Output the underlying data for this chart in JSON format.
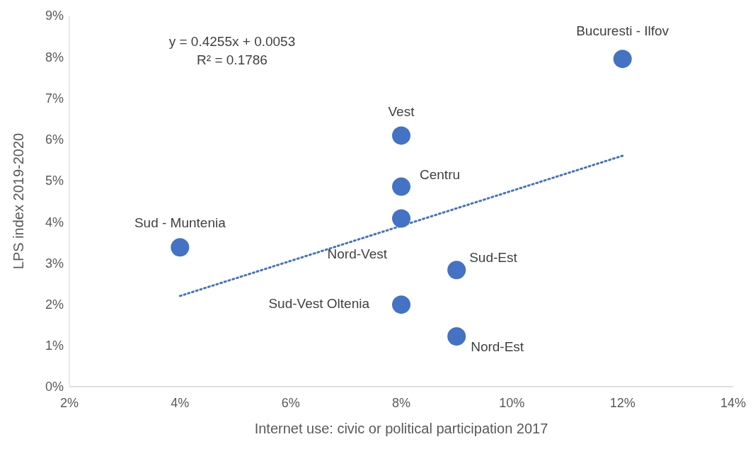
{
  "chart_data": {
    "type": "scatter",
    "xlabel": "Internet use: civic or political participation 2017",
    "ylabel": "LPS index 2019-2020",
    "xlim": [
      0.02,
      0.14
    ],
    "xticks": [
      {
        "value": 0.02,
        "label": "2%"
      },
      {
        "value": 0.04,
        "label": "4%"
      },
      {
        "value": 0.06,
        "label": "6%"
      },
      {
        "value": 0.08,
        "label": "8%"
      },
      {
        "value": 0.1,
        "label": "10%"
      },
      {
        "value": 0.12,
        "label": "12%"
      },
      {
        "value": 0.14,
        "label": "14%"
      }
    ],
    "ylim": [
      0,
      0.09
    ],
    "yticks": [
      {
        "value": 0,
        "label": "0%"
      },
      {
        "value": 0.01,
        "label": "1%"
      },
      {
        "value": 0.02,
        "label": "2%"
      },
      {
        "value": 0.03,
        "label": "3%"
      },
      {
        "value": 0.04,
        "label": "4%"
      },
      {
        "value": 0.05,
        "label": "5%"
      },
      {
        "value": 0.06,
        "label": "6%"
      },
      {
        "value": 0.07,
        "label": "7%"
      },
      {
        "value": 0.08,
        "label": "8%"
      },
      {
        "value": 0.09,
        "label": "9%"
      }
    ],
    "series": [
      {
        "marker": "circle",
        "color": "#4472c4",
        "x": [
          0.12,
          0.08,
          0.08,
          0.08,
          0.04,
          0.09,
          0.08,
          0.09
        ],
        "values": [
          0.0795,
          0.0609,
          0.0485,
          0.0408,
          0.0338,
          0.0283,
          0.0199,
          0.0122
        ]
      },
      {
        "type": "line",
        "color": "#4472c4",
        "line_style": "dotted",
        "x": [
          0.04,
          0.12
        ],
        "values": [
          0.022,
          0.056
        ]
      }
    ],
    "annotations": [
      {
        "text": "Bucuresti - Ilfov",
        "x": 0.12,
        "y": 0.0795
      },
      {
        "text": "Vest",
        "x": 0.08,
        "y": 0.0609
      },
      {
        "text": "Centru",
        "x": 0.08,
        "y": 0.0485
      },
      {
        "text": "Nord-Vest",
        "x": 0.08,
        "y": 0.0408
      },
      {
        "text": "Sud - Muntenia",
        "x": 0.04,
        "y": 0.0338
      },
      {
        "text": "Sud-Est",
        "x": 0.09,
        "y": 0.0283
      },
      {
        "text": "Sud-Vest Oltenia",
        "x": 0.08,
        "y": 0.0199
      },
      {
        "text": "Nord-Est",
        "x": 0.09,
        "y": 0.0122
      },
      "y = 0.4255x + 0.0053",
      "R² = 0.1786"
    ]
  }
}
